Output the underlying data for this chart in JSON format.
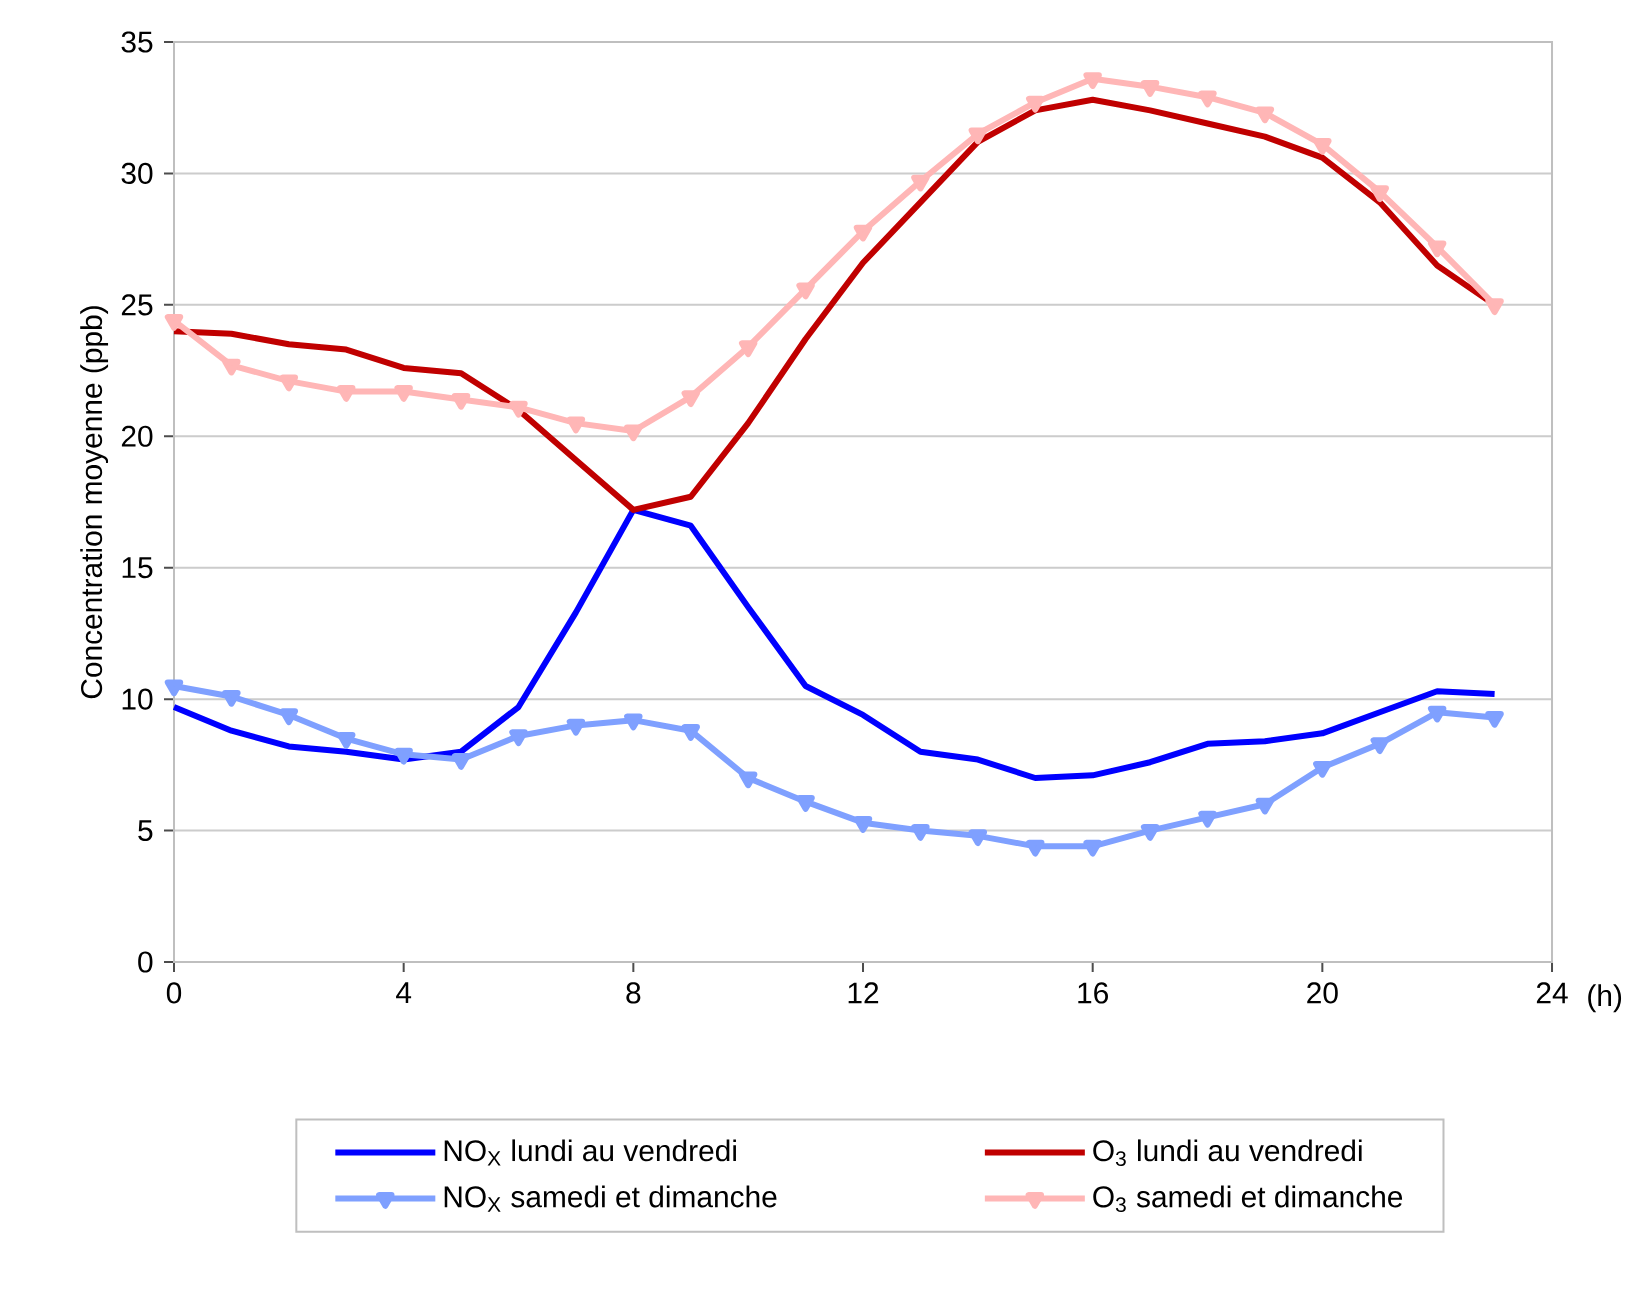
{
  "chart_data": {
    "type": "line",
    "xlabel": "(h)",
    "ylabel": "Concentration moyenne (ppb)",
    "x": [
      0,
      1,
      2,
      3,
      4,
      5,
      6,
      7,
      8,
      9,
      10,
      11,
      12,
      13,
      14,
      15,
      16,
      17,
      18,
      19,
      20,
      21,
      22,
      23
    ],
    "series": [
      {
        "name": "NO$_{X}$ lundi au vendredi",
        "color": "#0000ff",
        "marker": "none",
        "values": [
          9.7,
          8.8,
          8.2,
          8.0,
          7.7,
          8.0,
          9.7,
          13.3,
          17.2,
          16.6,
          13.5,
          10.5,
          9.4,
          8.0,
          7.7,
          7.0,
          7.1,
          7.6,
          8.3,
          8.4,
          8.7,
          9.5,
          10.3,
          10.2
        ]
      },
      {
        "name": "O$_{3}$ lundi au vendredi",
        "color": "#c00000",
        "marker": "none",
        "values": [
          24.0,
          23.9,
          23.5,
          23.3,
          22.6,
          22.4,
          21.0,
          19.1,
          17.2,
          17.7,
          20.5,
          23.7,
          26.6,
          28.9,
          31.2,
          32.4,
          32.8,
          32.4,
          31.9,
          31.4,
          30.6,
          28.9,
          26.5,
          25.0
        ]
      },
      {
        "name": "NO$_{X}$ samedi et dimanche",
        "color": "#7fa0ff",
        "marker": "triangle",
        "values": [
          10.5,
          10.1,
          9.4,
          8.5,
          7.9,
          7.7,
          8.6,
          9.0,
          9.2,
          8.8,
          7.0,
          6.1,
          5.3,
          5.0,
          4.8,
          4.4,
          4.4,
          5.0,
          5.5,
          6.0,
          7.4,
          8.3,
          9.5,
          9.3
        ]
      },
      {
        "name": "O$_{3}$ samedi et dimanche",
        "color": "#ffb6b6",
        "marker": "triangle",
        "values": [
          24.4,
          22.7,
          22.1,
          21.7,
          21.7,
          21.4,
          21.1,
          20.5,
          20.2,
          21.5,
          23.4,
          25.6,
          27.8,
          29.7,
          31.5,
          32.7,
          33.6,
          33.3,
          32.9,
          32.3,
          31.1,
          29.3,
          27.2,
          25.0
        ]
      }
    ],
    "xlim": [
      0,
      24
    ],
    "xticks": [
      0,
      4,
      8,
      12,
      16,
      20,
      24
    ],
    "ylim": [
      0,
      35
    ],
    "yticks": [
      0,
      5,
      10,
      15,
      20,
      25,
      30,
      35
    ],
    "grid": "y",
    "legend": "bottom"
  }
}
